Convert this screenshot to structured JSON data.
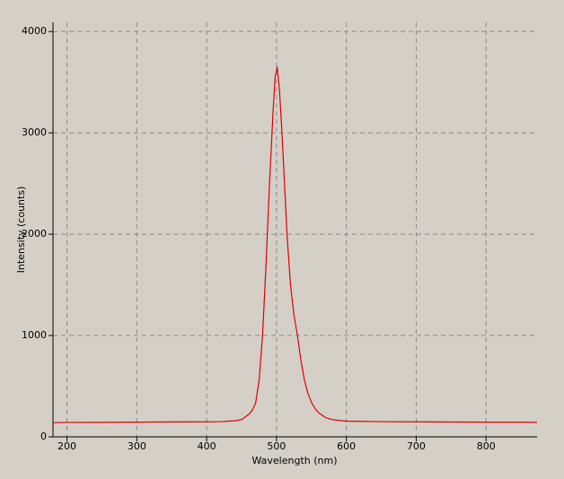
{
  "chart_data": {
    "type": "line",
    "xlabel": "Wavelength (nm)",
    "ylabel": "Intensity (counts)",
    "x": [
      180,
      200,
      250,
      300,
      350,
      400,
      420,
      440,
      450,
      460,
      465,
      470,
      475,
      480,
      485,
      490,
      495,
      498,
      501,
      504,
      507,
      510,
      515,
      520,
      525,
      530,
      535,
      540,
      545,
      550,
      555,
      560,
      570,
      580,
      600,
      650,
      700,
      750,
      800,
      850,
      873
    ],
    "series": [
      {
        "name": "Intensity",
        "color": "#e00000",
        "values": [
          140,
          142,
          143,
          145,
          147,
          148,
          150,
          158,
          170,
          220,
          260,
          330,
          550,
          1000,
          1700,
          2500,
          3200,
          3550,
          3650,
          3450,
          3100,
          2700,
          2000,
          1500,
          1200,
          1000,
          750,
          560,
          430,
          340,
          280,
          240,
          190,
          170,
          155,
          150,
          148,
          146,
          145,
          145,
          143
        ]
      }
    ],
    "xlim": [
      180,
      873
    ],
    "ylim": [
      0,
      4090
    ],
    "xticks": [
      200,
      300,
      400,
      500,
      600,
      700,
      800
    ],
    "yticks": [
      0,
      1000,
      2000,
      3000,
      4000
    ],
    "grid": true
  }
}
